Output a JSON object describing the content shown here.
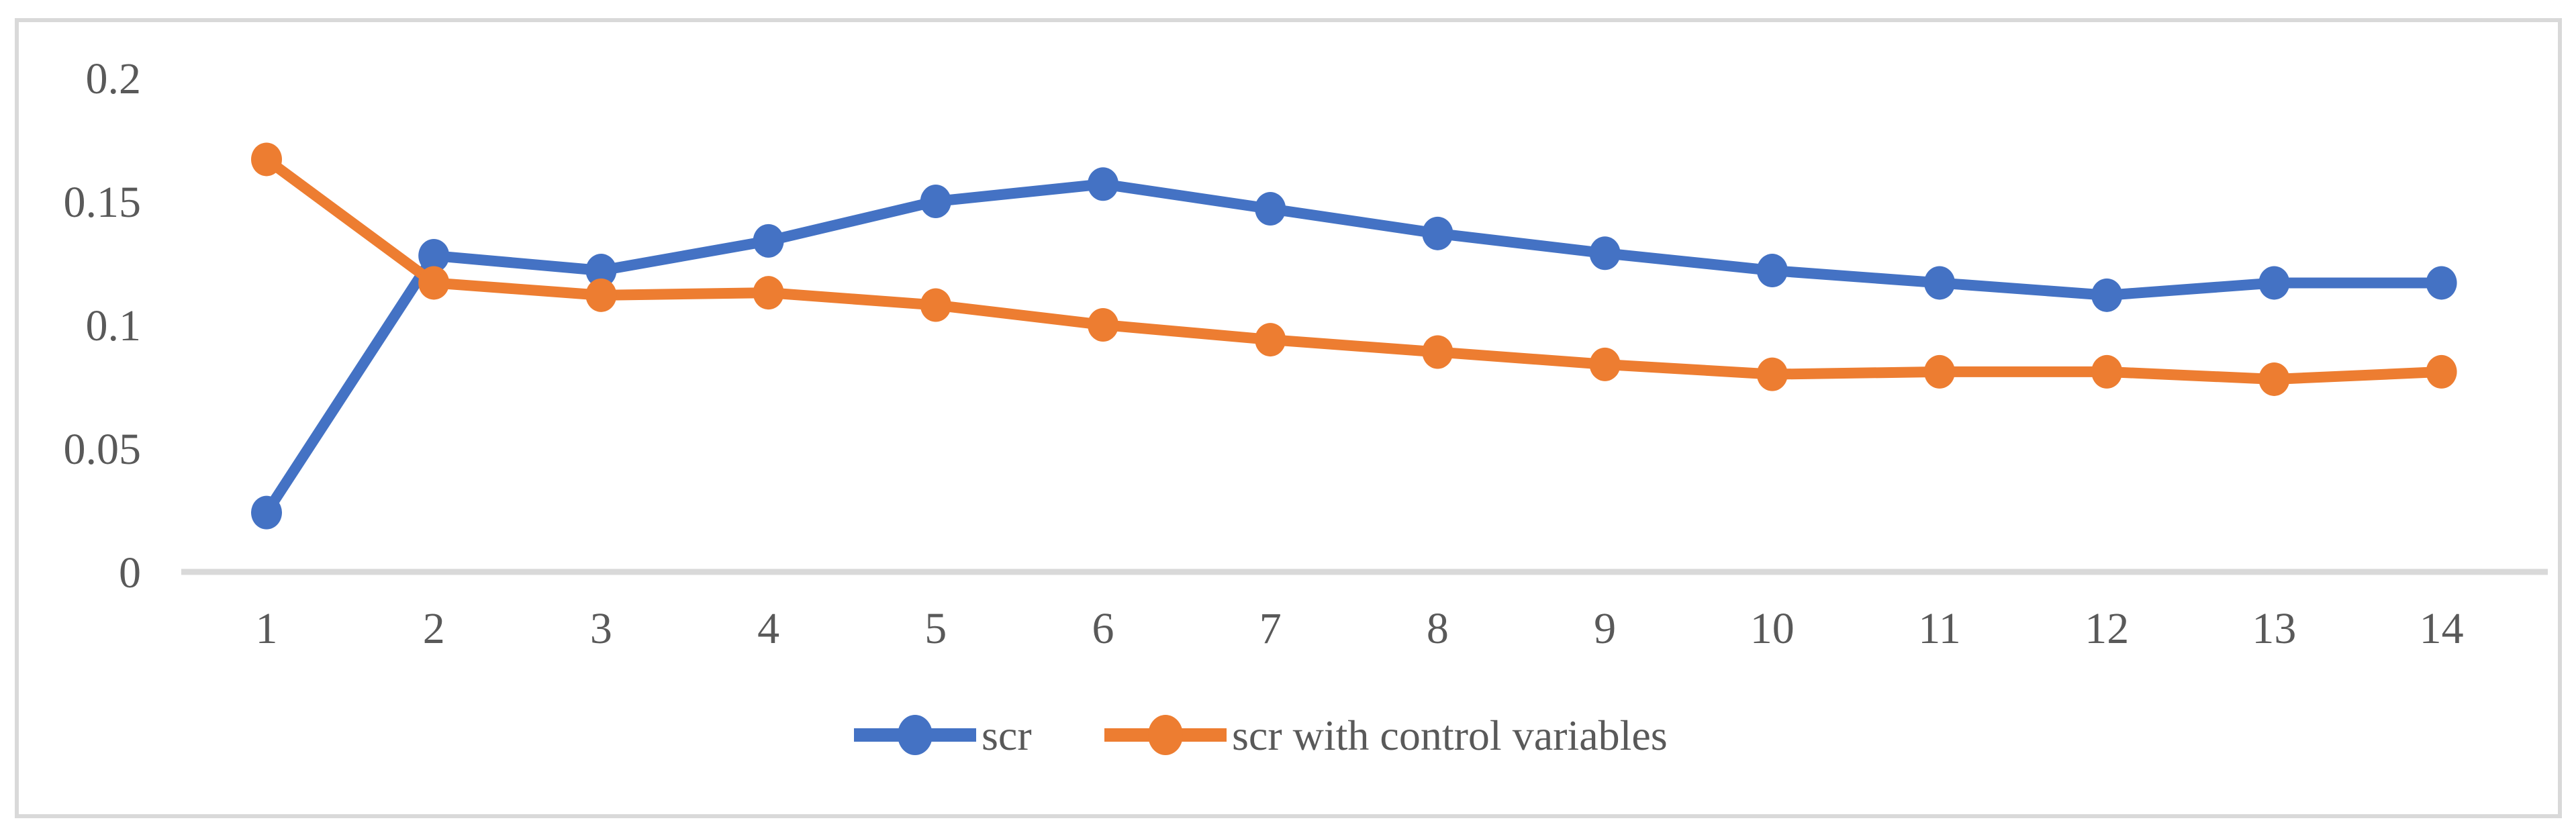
{
  "figure": {
    "background": "#ffffff",
    "frame_border_color": "#d9d9d9",
    "axis_line_color": "#d9d9d9",
    "text_color": "#595959"
  },
  "chart_data": {
    "type": "line",
    "title": "",
    "xlabel": "",
    "ylabel": "",
    "x": [
      1,
      2,
      3,
      4,
      5,
      6,
      7,
      8,
      9,
      10,
      11,
      12,
      13,
      14
    ],
    "x_tick_labels": [
      "1",
      "2",
      "3",
      "4",
      "5",
      "6",
      "7",
      "8",
      "9",
      "10",
      "11",
      "12",
      "13",
      "14"
    ],
    "y_ticks": [
      0,
      0.05,
      0.1,
      0.15,
      0.2
    ],
    "y_tick_labels": [
      "0",
      "0.05",
      "0.1",
      "0.15",
      "0.2"
    ],
    "ylim": [
      0,
      0.2
    ],
    "grid": false,
    "legend_position": "bottom-center",
    "series": [
      {
        "name": "scr",
        "color": "#4472C4",
        "marker": "circle",
        "values": [
          0.024,
          0.128,
          0.122,
          0.134,
          0.15,
          0.157,
          0.147,
          0.137,
          0.129,
          0.122,
          0.117,
          0.112,
          0.117,
          0.117
        ]
      },
      {
        "name": "scr with control variables",
        "color": "#ED7D31",
        "marker": "circle",
        "values": [
          0.167,
          0.117,
          0.112,
          0.113,
          0.108,
          0.1,
          0.094,
          0.089,
          0.084,
          0.08,
          0.081,
          0.081,
          0.078,
          0.081
        ]
      }
    ]
  }
}
